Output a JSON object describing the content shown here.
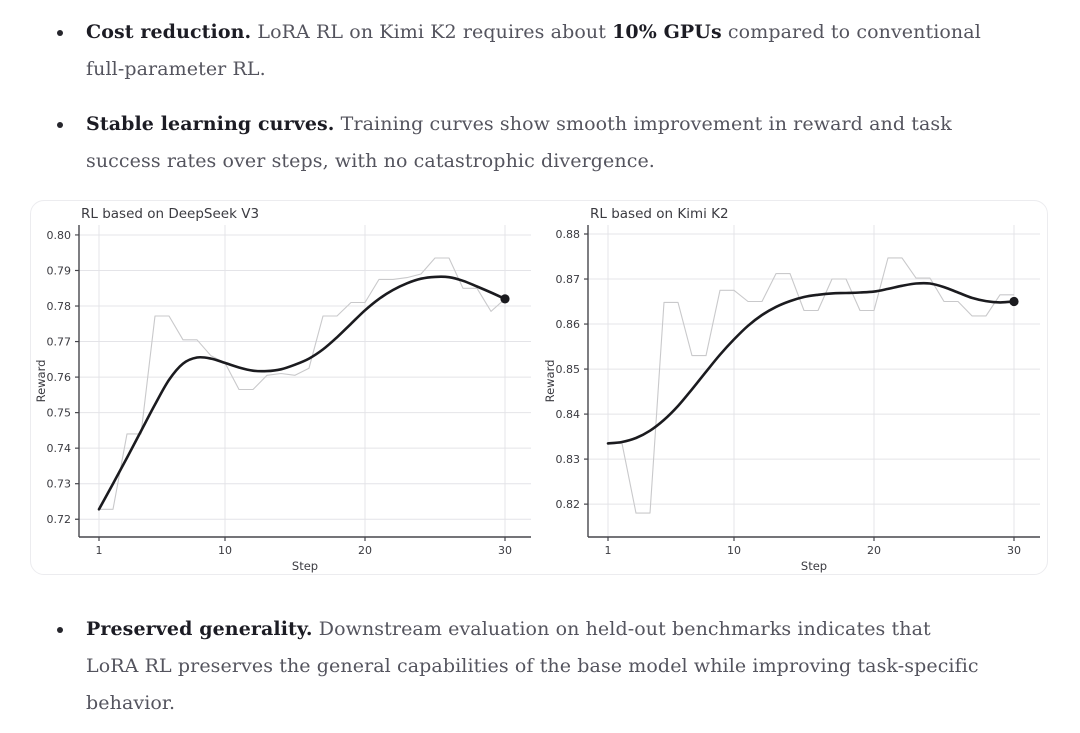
{
  "page": {
    "background": "#ffffff"
  },
  "colors": {
    "body_text": "#54545e",
    "strong_text": "#1c1c24",
    "bullet_marker": "#26262c",
    "card_border": "#ececef",
    "chart_text": "#3b3b41",
    "grid": "#e4e4e8",
    "spine": "#46464c",
    "raw_line": "#c9c9cb",
    "smooth_line": "#1b1b1f"
  },
  "content": {
    "bullets": [
      {
        "segments": [
          {
            "text": "Cost reduction.",
            "bold": true
          },
          {
            "text": " LoRA RL on Kimi K2 requires about ",
            "bold": false
          },
          {
            "text": "10% GPUs",
            "bold": true
          },
          {
            "text": " compared to conventional full-parameter RL.",
            "bold": false
          }
        ]
      },
      {
        "segments": [
          {
            "text": "Stable learning curves.",
            "bold": true
          },
          {
            "text": " Training curves show smooth improvement in reward and task success rates over steps, with no catastrophic divergence.",
            "bold": false
          }
        ]
      },
      {
        "segments": [
          {
            "text": "Preserved generality.",
            "bold": true
          },
          {
            "text": " Downstream evaluation on held-out benchmarks indicates that LoRA RL preserves the general capabilities of the base model while improving task-specific behavior.",
            "bold": false
          }
        ]
      }
    ]
  },
  "chart_data": [
    {
      "type": "line",
      "title": "RL based on DeepSeek V3",
      "xlabel": "Step",
      "ylabel": "Reward",
      "x": [
        1,
        2,
        3,
        4,
        5,
        6,
        7,
        8,
        9,
        10,
        11,
        12,
        13,
        14,
        15,
        16,
        17,
        18,
        19,
        20,
        21,
        22,
        23,
        24,
        25,
        26,
        27,
        28,
        29,
        30
      ],
      "xticks": [
        1,
        10,
        20,
        30
      ],
      "yticks": [
        0.72,
        0.73,
        0.74,
        0.75,
        0.76,
        0.77,
        0.78,
        0.79,
        0.8
      ],
      "ylim": [
        0.715,
        0.8028
      ],
      "grid": true,
      "legend": "none",
      "series": [
        {
          "name": "raw reward",
          "color": "#c9c9cb",
          "width": 1.1,
          "values": [
            0.7228,
            0.7228,
            0.744,
            0.744,
            0.7772,
            0.7772,
            0.7705,
            0.7705,
            0.766,
            0.764,
            0.7565,
            0.7565,
            0.7605,
            0.761,
            0.7605,
            0.7625,
            0.7772,
            0.7772,
            0.781,
            0.781,
            0.7875,
            0.7875,
            0.788,
            0.789,
            0.7935,
            0.7935,
            0.785,
            0.785,
            0.7785,
            0.782
          ]
        },
        {
          "name": "smoothed reward",
          "color": "#1b1b1f",
          "width": 2.6,
          "end_dot": true,
          "values": [
            0.7228,
            0.73,
            0.7373,
            0.7448,
            0.7523,
            0.7592,
            0.7638,
            0.7655,
            0.7652,
            0.764,
            0.7627,
            0.7618,
            0.7617,
            0.7622,
            0.7635,
            0.7652,
            0.7678,
            0.7712,
            0.775,
            0.7788,
            0.782,
            0.7845,
            0.7864,
            0.7877,
            0.7882,
            0.7881,
            0.7871,
            0.7855,
            0.7838,
            0.782
          ]
        }
      ]
    },
    {
      "type": "line",
      "title": "RL based on Kimi K2",
      "xlabel": "Step",
      "ylabel": "Reward",
      "x": [
        1,
        2,
        3,
        4,
        5,
        6,
        7,
        8,
        9,
        10,
        11,
        12,
        13,
        14,
        15,
        16,
        17,
        18,
        19,
        20,
        21,
        22,
        23,
        24,
        25,
        26,
        27,
        28,
        29,
        30
      ],
      "xticks": [
        1,
        10,
        20,
        30
      ],
      "yticks": [
        0.82,
        0.83,
        0.84,
        0.85,
        0.86,
        0.87,
        0.88
      ],
      "ylim": [
        0.8127,
        0.882
      ],
      "grid": true,
      "legend": "none",
      "series": [
        {
          "name": "raw reward",
          "color": "#c9c9cb",
          "width": 1.1,
          "values": [
            0.8335,
            0.8335,
            0.818,
            0.818,
            0.8648,
            0.8648,
            0.853,
            0.853,
            0.8675,
            0.8675,
            0.865,
            0.865,
            0.8712,
            0.8712,
            0.863,
            0.863,
            0.87,
            0.87,
            0.863,
            0.863,
            0.8747,
            0.8747,
            0.8702,
            0.8702,
            0.865,
            0.865,
            0.8618,
            0.8618,
            0.8665,
            0.8665
          ]
        },
        {
          "name": "smoothed reward",
          "color": "#1b1b1f",
          "width": 2.6,
          "end_dot": true,
          "values": [
            0.8335,
            0.8338,
            0.8347,
            0.8363,
            0.8387,
            0.8418,
            0.8455,
            0.8494,
            0.8532,
            0.8566,
            0.8596,
            0.862,
            0.8638,
            0.8651,
            0.866,
            0.8665,
            0.8668,
            0.8669,
            0.867,
            0.8672,
            0.8678,
            0.8685,
            0.869,
            0.869,
            0.8682,
            0.867,
            0.8658,
            0.8651,
            0.8648,
            0.865
          ]
        }
      ]
    }
  ]
}
